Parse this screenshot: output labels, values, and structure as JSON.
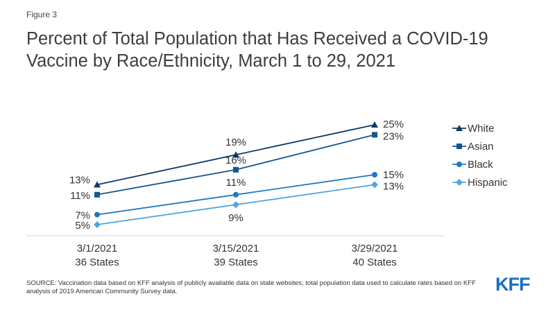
{
  "figure_label": "Figure 3",
  "title": "Percent of Total Population that Has Received a COVID-19 Vaccine by Race/Ethnicity, March 1 to 29, 2021",
  "source": "SOURCE: Vaccination data based on KFF analysis of publicly available data on state websites; total population data used to calculate rates based on KFF analysis of 2019 American Community Survey data.",
  "logo_text": "KFF",
  "chart_data": {
    "type": "line",
    "title": "Percent of Total Population that Has Received a COVID-19 Vaccine by Race/Ethnicity, March 1 to 29, 2021",
    "categories": [
      {
        "date": "3/1/2021",
        "states": "36 States"
      },
      {
        "date": "3/15/2021",
        "states": "39 States"
      },
      {
        "date": "3/29/2021",
        "states": "40 States"
      }
    ],
    "ylim": [
      0,
      30
    ],
    "xlabel": "",
    "ylabel": "",
    "grid": false,
    "legend": "right",
    "series": [
      {
        "name": "White",
        "marker": "triangle",
        "color": "#0b3a66",
        "values": [
          13,
          19,
          25
        ],
        "labels": [
          "13%",
          "19%",
          "25%"
        ]
      },
      {
        "name": "Asian",
        "marker": "square",
        "color": "#14568f",
        "values": [
          11,
          16,
          23
        ],
        "labels": [
          "11%",
          "16%",
          "23%"
        ]
      },
      {
        "name": "Black",
        "marker": "circle",
        "color": "#1f78c1",
        "values": [
          7,
          11,
          15
        ],
        "labels": [
          "7%",
          "11%",
          "15%"
        ]
      },
      {
        "name": "Hispanic",
        "marker": "diamond",
        "color": "#4da6e8",
        "values": [
          5,
          9,
          13
        ],
        "labels": [
          "5%",
          "9%",
          "13%"
        ]
      }
    ]
  }
}
